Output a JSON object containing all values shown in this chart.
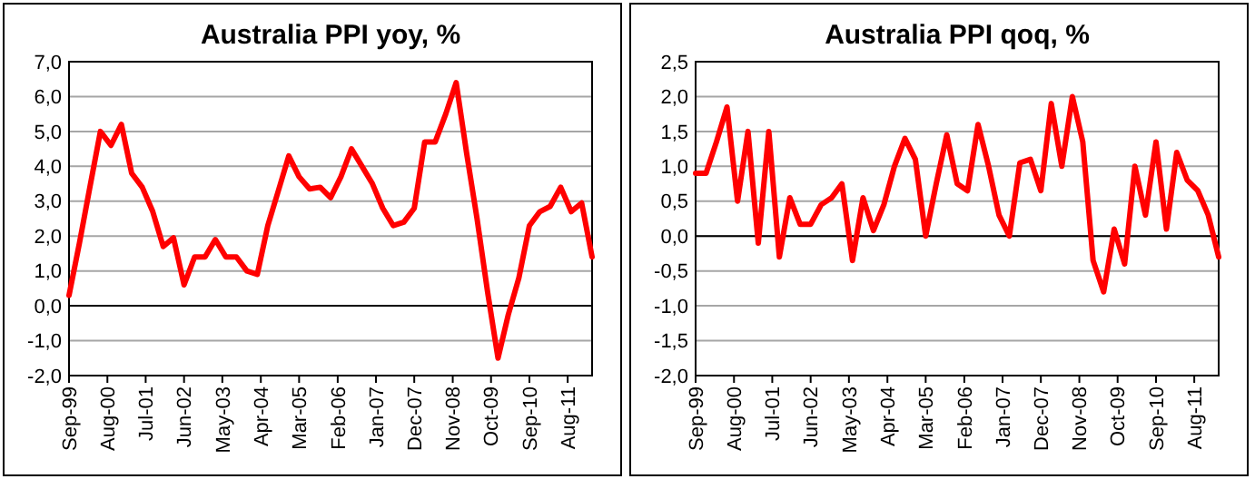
{
  "chart_data": [
    {
      "type": "line",
      "title": "Australia PPI yoy, %",
      "x": [
        "1999-09",
        "1999-12",
        "2000-03",
        "2000-06",
        "2000-09",
        "2000-12",
        "2001-03",
        "2001-06",
        "2001-09",
        "2001-12",
        "2002-03",
        "2002-06",
        "2002-09",
        "2002-12",
        "2003-03",
        "2003-06",
        "2003-09",
        "2003-12",
        "2004-03",
        "2004-06",
        "2004-09",
        "2004-12",
        "2005-03",
        "2005-06",
        "2005-09",
        "2005-12",
        "2006-03",
        "2006-06",
        "2006-09",
        "2006-12",
        "2007-03",
        "2007-06",
        "2007-09",
        "2007-12",
        "2008-03",
        "2008-06",
        "2008-09",
        "2008-12",
        "2009-03",
        "2009-06",
        "2009-09",
        "2009-12",
        "2010-03",
        "2010-06",
        "2010-09",
        "2010-12",
        "2011-03",
        "2011-06",
        "2011-09",
        "2011-12",
        "2012-03"
      ],
      "series": [
        {
          "color": "#ff0000",
          "values": [
            0.3,
            1.8,
            3.4,
            5.0,
            4.6,
            5.2,
            3.8,
            3.4,
            2.7,
            1.7,
            1.95,
            0.6,
            1.4,
            1.4,
            1.9,
            1.4,
            1.4,
            1.0,
            0.9,
            2.3,
            3.3,
            4.3,
            3.7,
            3.35,
            3.4,
            3.1,
            3.7,
            4.5,
            4.0,
            3.5,
            2.8,
            2.3,
            2.4,
            2.8,
            4.7,
            4.7,
            5.5,
            6.4,
            4.4,
            2.5,
            0.4,
            -1.5,
            -0.25,
            0.8,
            2.3,
            2.7,
            2.85,
            3.4,
            2.7,
            2.95,
            1.4
          ]
        }
      ],
      "xlim": [
        "1999-09",
        "2012-03"
      ],
      "xticks": [
        {
          "value": "1999-09",
          "label": "Sep-99"
        },
        {
          "value": "2000-08",
          "label": "Aug-00"
        },
        {
          "value": "2001-07",
          "label": "Jul-01"
        },
        {
          "value": "2002-06",
          "label": "Jun-02"
        },
        {
          "value": "2003-05",
          "label": "May-03"
        },
        {
          "value": "2004-04",
          "label": "Apr-04"
        },
        {
          "value": "2005-03",
          "label": "Mar-05"
        },
        {
          "value": "2006-02",
          "label": "Feb-06"
        },
        {
          "value": "2007-01",
          "label": "Jan-07"
        },
        {
          "value": "2007-12",
          "label": "Dec-07"
        },
        {
          "value": "2008-11",
          "label": "Nov-08"
        },
        {
          "value": "2009-10",
          "label": "Oct-09"
        },
        {
          "value": "2010-09",
          "label": "Sep-10"
        },
        {
          "value": "2011-08",
          "label": "Aug-11"
        }
      ],
      "ylim": [
        -2,
        7
      ],
      "yticks": [
        {
          "value": -2,
          "label": "-2,0"
        },
        {
          "value": -1,
          "label": "-1,0"
        },
        {
          "value": 0,
          "label": "0,0"
        },
        {
          "value": 1,
          "label": "1,0"
        },
        {
          "value": 2,
          "label": "2,0"
        },
        {
          "value": 3,
          "label": "3,0"
        },
        {
          "value": 4,
          "label": "4,0"
        },
        {
          "value": 5,
          "label": "5,0"
        },
        {
          "value": 6,
          "label": "6,0"
        },
        {
          "value": 7,
          "label": "7,0"
        }
      ],
      "grid": "y",
      "marker": "none",
      "line_style": "solid",
      "ref_lines": [
        {
          "axis": "y",
          "value": 0,
          "color": "#000000"
        }
      ]
    },
    {
      "type": "line",
      "title": "Australia PPI qoq, %",
      "x": [
        "1999-09",
        "1999-12",
        "2000-03",
        "2000-06",
        "2000-09",
        "2000-12",
        "2001-03",
        "2001-06",
        "2001-09",
        "2001-12",
        "2002-03",
        "2002-06",
        "2002-09",
        "2002-12",
        "2003-03",
        "2003-06",
        "2003-09",
        "2003-12",
        "2004-03",
        "2004-06",
        "2004-09",
        "2004-12",
        "2005-03",
        "2005-06",
        "2005-09",
        "2005-12",
        "2006-03",
        "2006-06",
        "2006-09",
        "2006-12",
        "2007-03",
        "2007-06",
        "2007-09",
        "2007-12",
        "2008-03",
        "2008-06",
        "2008-09",
        "2008-12",
        "2009-03",
        "2009-06",
        "2009-09",
        "2009-12",
        "2010-03",
        "2010-06",
        "2010-09",
        "2010-12",
        "2011-03",
        "2011-06",
        "2011-09",
        "2011-12",
        "2012-03"
      ],
      "series": [
        {
          "color": "#ff0000",
          "values": [
            0.9,
            0.9,
            1.35,
            1.85,
            0.5,
            1.5,
            -0.1,
            1.5,
            -0.3,
            0.55,
            0.17,
            0.17,
            0.45,
            0.55,
            0.75,
            -0.35,
            0.55,
            0.08,
            0.45,
            1.0,
            1.4,
            1.1,
            0.0,
            0.75,
            1.45,
            0.75,
            0.65,
            1.6,
            1.0,
            0.3,
            0.0,
            1.05,
            1.1,
            0.65,
            1.9,
            1.0,
            2.0,
            1.35,
            -0.35,
            -0.8,
            0.1,
            -0.4,
            1.0,
            0.3,
            1.35,
            0.1,
            1.2,
            0.8,
            0.65,
            0.3,
            -0.3
          ]
        }
      ],
      "xlim": [
        "1999-09",
        "2012-03"
      ],
      "xticks": [
        {
          "value": "1999-09",
          "label": "Sep-99"
        },
        {
          "value": "2000-08",
          "label": "Aug-00"
        },
        {
          "value": "2001-07",
          "label": "Jul-01"
        },
        {
          "value": "2002-06",
          "label": "Jun-02"
        },
        {
          "value": "2003-05",
          "label": "May-03"
        },
        {
          "value": "2004-04",
          "label": "Apr-04"
        },
        {
          "value": "2005-03",
          "label": "Mar-05"
        },
        {
          "value": "2006-02",
          "label": "Feb-06"
        },
        {
          "value": "2007-01",
          "label": "Jan-07"
        },
        {
          "value": "2007-12",
          "label": "Dec-07"
        },
        {
          "value": "2008-11",
          "label": "Nov-08"
        },
        {
          "value": "2009-10",
          "label": "Oct-09"
        },
        {
          "value": "2010-09",
          "label": "Sep-10"
        },
        {
          "value": "2011-08",
          "label": "Aug-11"
        }
      ],
      "ylim": [
        -2,
        2.5
      ],
      "yticks": [
        {
          "value": -2,
          "label": "-2,0"
        },
        {
          "value": -1.5,
          "label": "-1,5"
        },
        {
          "value": -1,
          "label": "-1,0"
        },
        {
          "value": -0.5,
          "label": "-0,5"
        },
        {
          "value": 0,
          "label": "0,0"
        },
        {
          "value": 0.5,
          "label": "0,5"
        },
        {
          "value": 1,
          "label": "1,0"
        },
        {
          "value": 1.5,
          "label": "1,5"
        },
        {
          "value": 2,
          "label": "2,0"
        },
        {
          "value": 2.5,
          "label": "2,5"
        }
      ],
      "grid": "y",
      "marker": "none",
      "line_style": "solid",
      "ref_lines": [
        {
          "axis": "y",
          "value": 0,
          "color": "#000000"
        }
      ]
    }
  ]
}
